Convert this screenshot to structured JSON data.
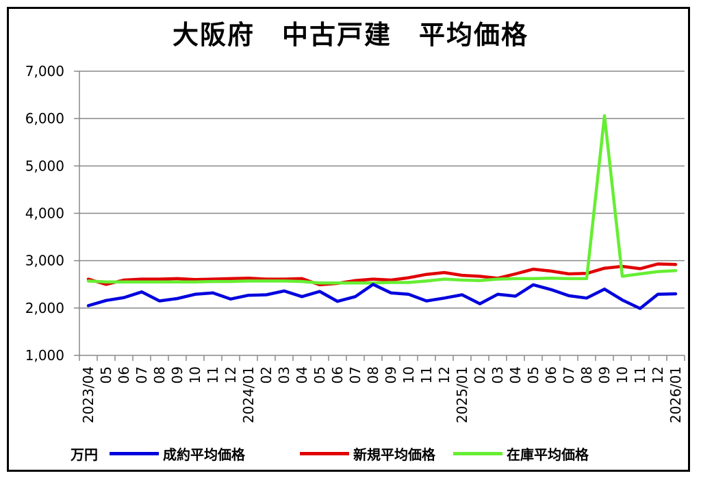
{
  "chart_data": {
    "type": "line",
    "title": "大阪府　中古戸建　平均価格",
    "unit": "万円",
    "ylim": [
      1000,
      7000
    ],
    "yticks": [
      "1,000",
      "2,000",
      "3,000",
      "4,000",
      "5,000",
      "6,000",
      "7,000"
    ],
    "ytick_values": [
      1000,
      2000,
      3000,
      4000,
      5000,
      6000,
      7000
    ],
    "grid": true,
    "legend_position": "bottom",
    "x": [
      "2023/04",
      "05",
      "06",
      "07",
      "08",
      "09",
      "10",
      "11",
      "12",
      "2024/01",
      "02",
      "03",
      "04",
      "05",
      "06",
      "07",
      "08",
      "09",
      "10",
      "11",
      "12",
      "2025/01",
      "02",
      "03",
      "04",
      "05",
      "06",
      "07",
      "08",
      "09",
      "10",
      "11",
      "12",
      "2026/01"
    ],
    "series": [
      {
        "name": "成約平均価格",
        "color": "#0000dd",
        "values": [
          2050,
          2160,
          2220,
          2340,
          2150,
          2200,
          2290,
          2320,
          2190,
          2270,
          2280,
          2360,
          2240,
          2350,
          2140,
          2240,
          2500,
          2320,
          2290,
          2150,
          2210,
          2280,
          2090,
          2290,
          2250,
          2490,
          2390,
          2260,
          2210,
          2400,
          2170,
          1990,
          2290,
          2300
        ]
      },
      {
        "name": "新規平均価格",
        "color": "#e00000",
        "values": [
          2610,
          2500,
          2590,
          2610,
          2610,
          2620,
          2600,
          2610,
          2620,
          2630,
          2610,
          2610,
          2620,
          2490,
          2520,
          2580,
          2610,
          2590,
          2640,
          2710,
          2750,
          2690,
          2670,
          2630,
          2720,
          2820,
          2780,
          2720,
          2730,
          2840,
          2880,
          2830,
          2930,
          2920
        ]
      },
      {
        "name": "在庫平均価格",
        "color": "#66ee33",
        "values": [
          2570,
          2550,
          2550,
          2550,
          2550,
          2550,
          2550,
          2560,
          2560,
          2570,
          2570,
          2570,
          2560,
          2530,
          2530,
          2530,
          2530,
          2540,
          2540,
          2570,
          2610,
          2590,
          2580,
          2610,
          2620,
          2620,
          2630,
          2620,
          2620,
          6060,
          2670,
          2720,
          2770,
          2790
        ]
      }
    ]
  }
}
